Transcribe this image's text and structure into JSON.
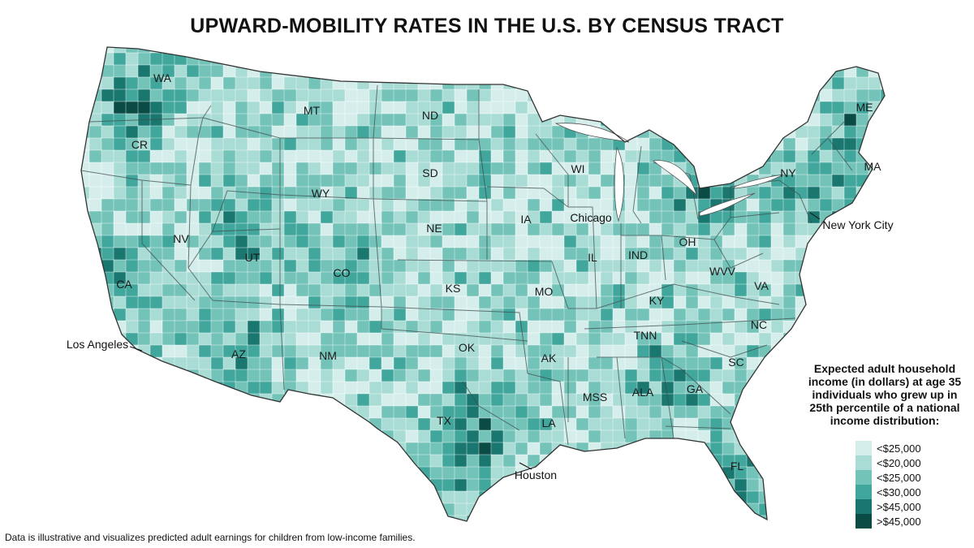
{
  "title": "UPWARD-MOBILITY RATES IN THE U.S. BY CENSUS TRACT",
  "footnote": "Data is illustrative and visualizes predicted adult earnings for children from low-income families.",
  "legend": {
    "title": "Expected adult household income (in dollars) at age 35 individuals who grew up in 25th percentile of a national income distribution:",
    "items": [
      {
        "label": "<$25,000",
        "color": "#d6eeeb"
      },
      {
        "label": "<$20,000",
        "color": "#a9dcd5"
      },
      {
        "label": "<$25,000",
        "color": "#74c3b9"
      },
      {
        "label": "<$30,000",
        "color": "#41a69c"
      },
      {
        "label": ">$45,000",
        "color": "#19776f"
      },
      {
        "label": ">$45,000",
        "color": "#0b4b45"
      }
    ]
  },
  "states": [
    {
      "abbr": "WA"
    },
    {
      "abbr": "CR"
    },
    {
      "abbr": "CA"
    },
    {
      "abbr": "NV"
    },
    {
      "abbr": "MT"
    },
    {
      "abbr": "WY"
    },
    {
      "abbr": "UT"
    },
    {
      "abbr": "CO"
    },
    {
      "abbr": "AZ"
    },
    {
      "abbr": "NM"
    },
    {
      "abbr": "ND"
    },
    {
      "abbr": "SD"
    },
    {
      "abbr": "NE"
    },
    {
      "abbr": "KS"
    },
    {
      "abbr": "OK"
    },
    {
      "abbr": "TX"
    },
    {
      "abbr": "IA"
    },
    {
      "abbr": "MO"
    },
    {
      "abbr": "AK"
    },
    {
      "abbr": "LA"
    },
    {
      "abbr": "WI"
    },
    {
      "abbr": "IL"
    },
    {
      "abbr": "IND"
    },
    {
      "abbr": "OH"
    },
    {
      "abbr": "KY"
    },
    {
      "abbr": "TNN"
    },
    {
      "abbr": "MSS"
    },
    {
      "abbr": "ALA"
    },
    {
      "abbr": "GA"
    },
    {
      "abbr": "FL"
    },
    {
      "abbr": "SC"
    },
    {
      "abbr": "NC"
    },
    {
      "abbr": "VA"
    },
    {
      "abbr": "WVV"
    },
    {
      "abbr": "NY"
    },
    {
      "abbr": "MA"
    },
    {
      "abbr": "ME"
    }
  ],
  "cities": [
    {
      "name": "Los Angeles"
    },
    {
      "name": "Chicago"
    },
    {
      "name": "New York City"
    },
    {
      "name": "Houston"
    }
  ]
}
